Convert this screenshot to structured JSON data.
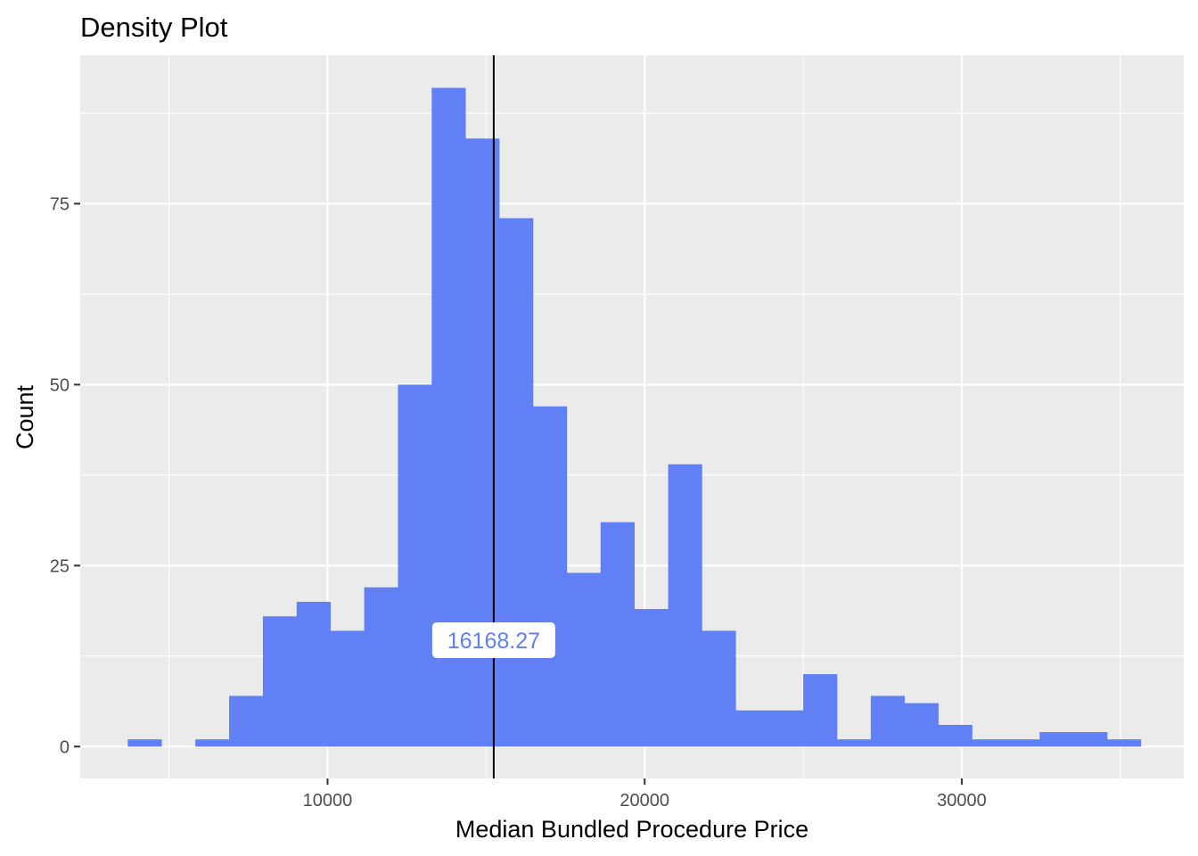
{
  "chart_data": {
    "type": "bar",
    "subtype": "histogram",
    "title": "Density Plot",
    "xlabel": "Median Bundled Procedure Price",
    "ylabel": "Count",
    "xlim": [
      2200,
      37000
    ],
    "ylim": [
      -4.4,
      95.5
    ],
    "x_ticks": [
      10000,
      20000,
      30000
    ],
    "x_tick_labels": [
      "10000",
      "20000",
      "30000"
    ],
    "y_ticks": [
      0,
      25,
      50,
      75
    ],
    "y_tick_labels": [
      "0",
      "25",
      "50",
      "75"
    ],
    "bin_width": 1065,
    "bin_start": 3700,
    "counts": [
      1,
      0,
      1,
      7,
      18,
      20,
      16,
      22,
      50,
      91,
      84,
      73,
      47,
      24,
      31,
      19,
      39,
      16,
      5,
      5,
      10,
      1,
      7,
      6,
      3,
      1,
      1,
      2,
      2,
      1
    ],
    "bar_color": "#6180F5",
    "panel_background": "#EBEBEB",
    "grid": true,
    "grid_color": "#FFFFFF",
    "vline": {
      "x": 15240,
      "color": "#000000"
    },
    "annotation": {
      "text": "16168.27",
      "x": 15240,
      "y": 14.7,
      "color": "#6180F5",
      "background": "#FFFFFF"
    }
  }
}
